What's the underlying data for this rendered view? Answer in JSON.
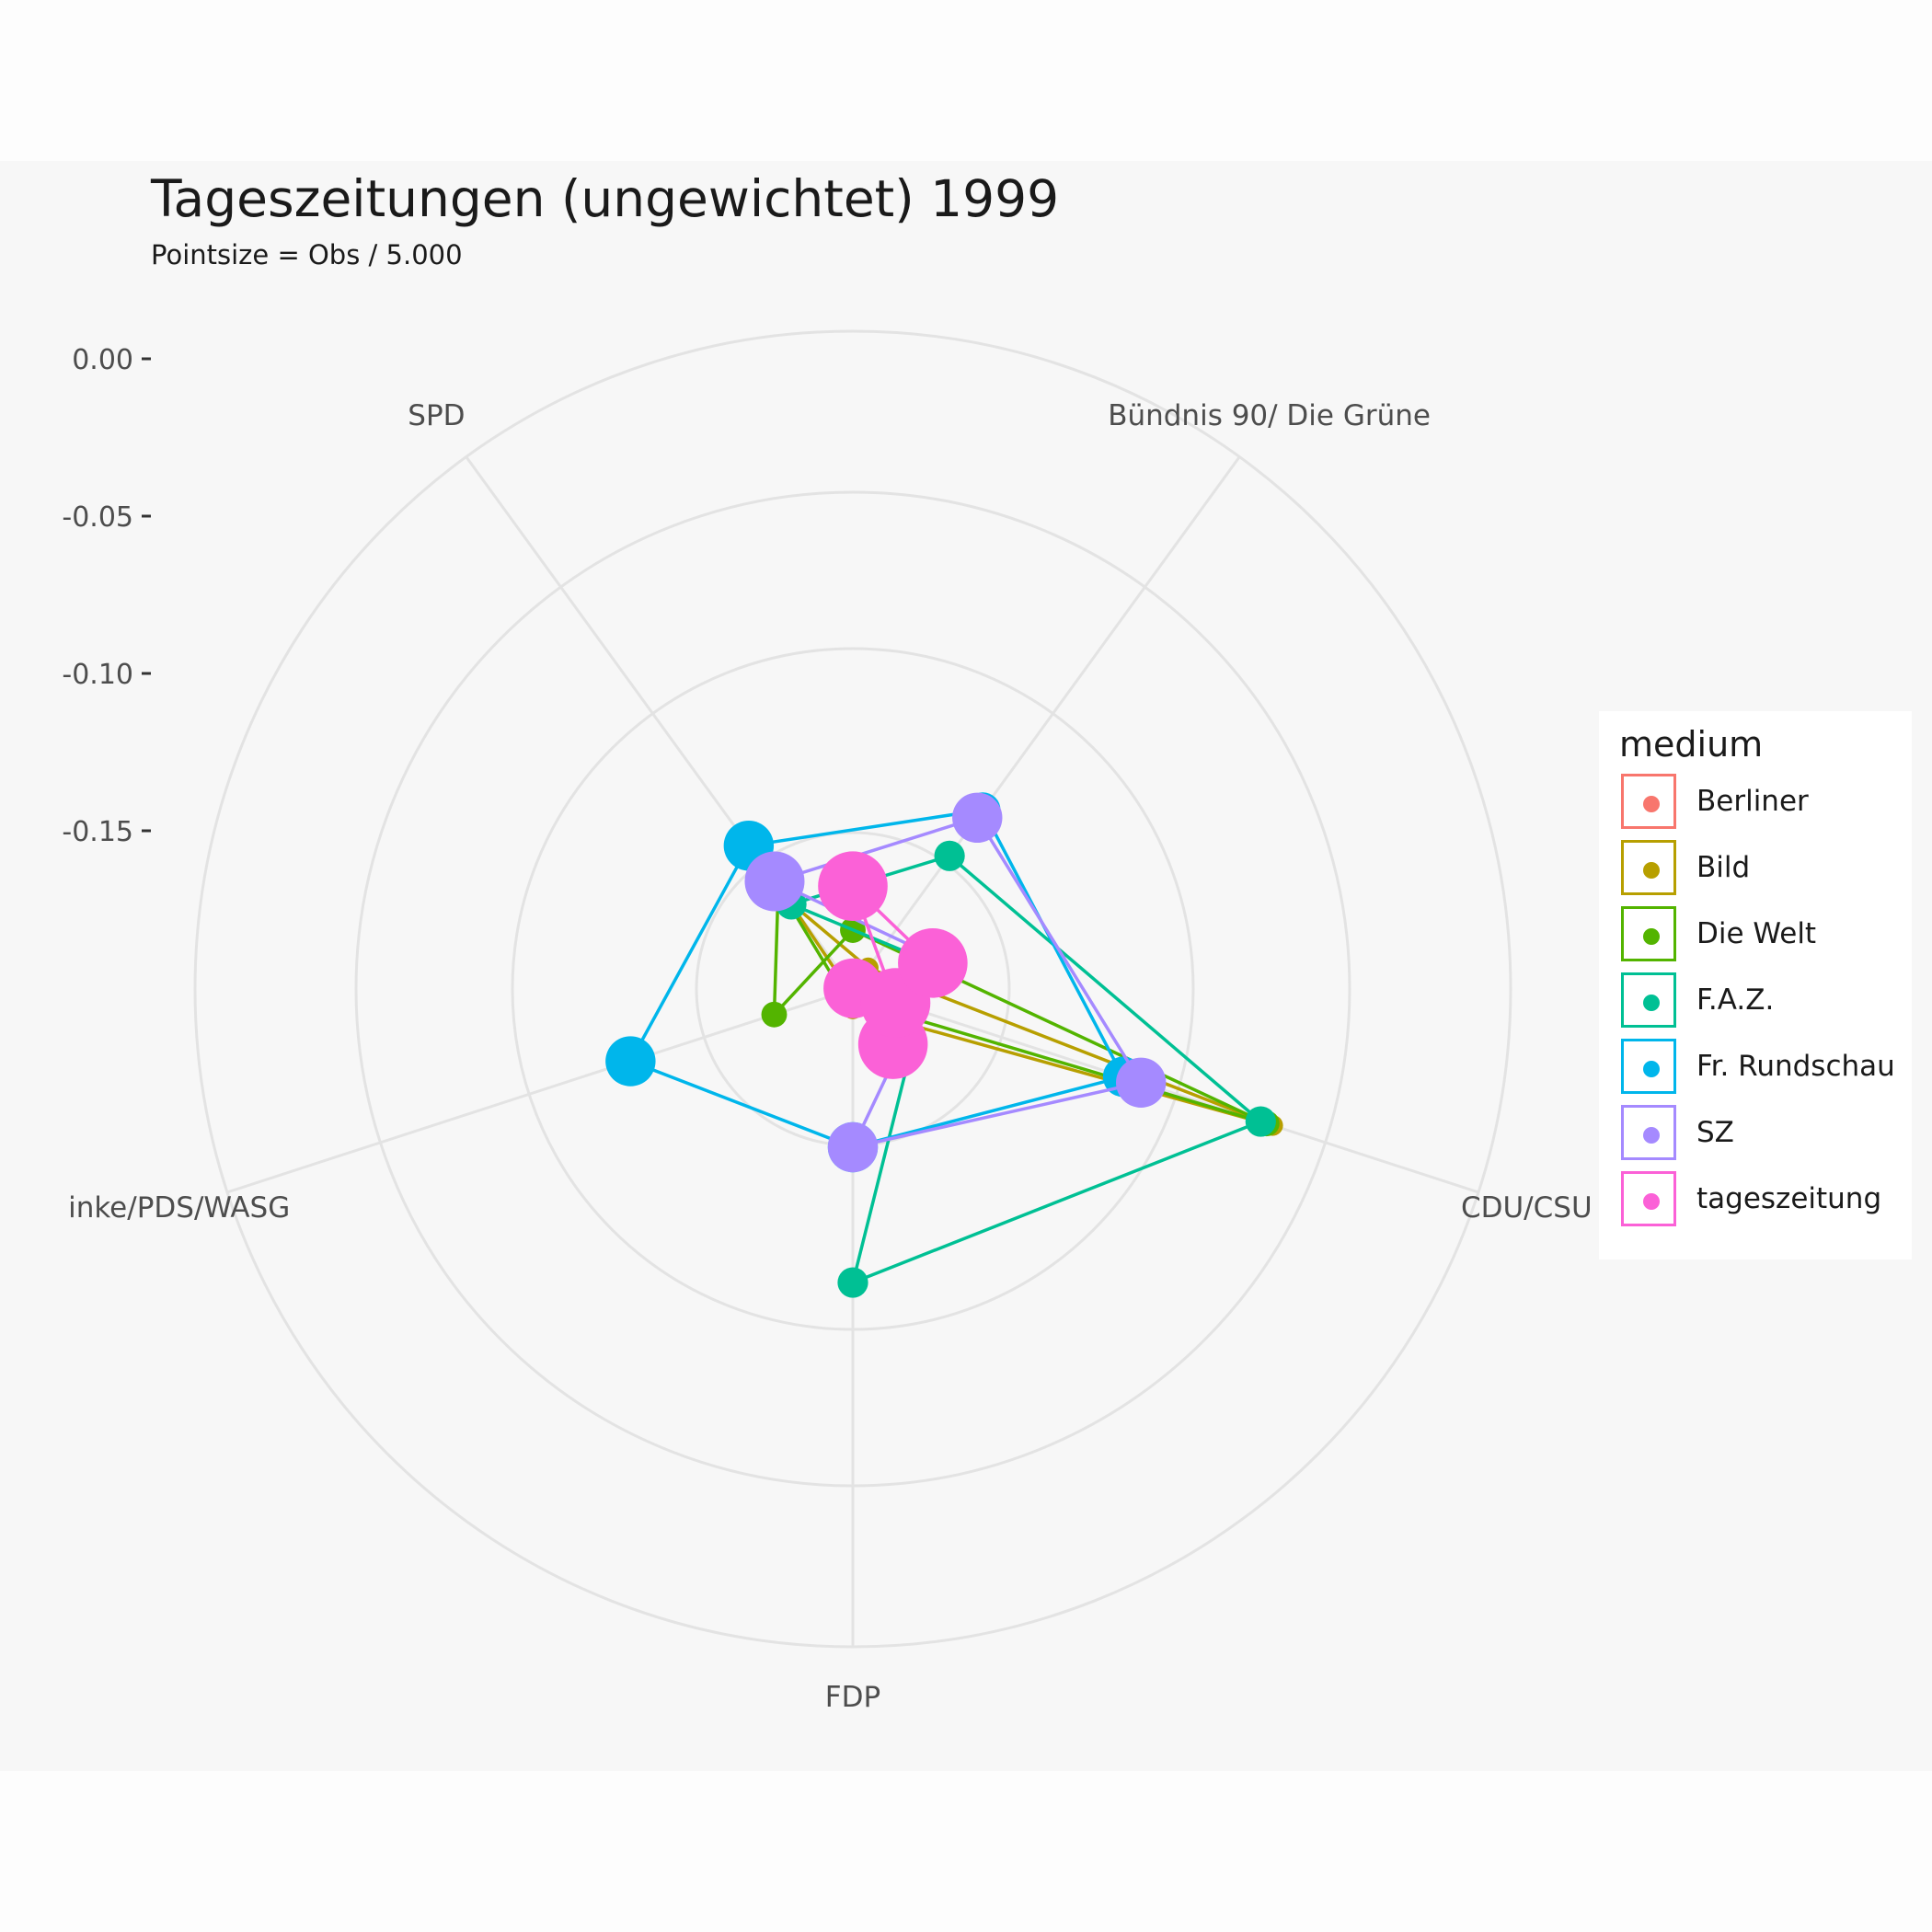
{
  "chart_data": {
    "type": "radar",
    "title": "Tageszeitungen (ungewichtet) 1999",
    "subtitle": "Pointsize = Obs / 5.000",
    "axes": [
      "SPD",
      "Bündnis 90/ Die Grüne",
      "CDU/CSU",
      "FDP",
      "inke/PDS/WASG"
    ],
    "r_ticks": [
      {
        "value": 0.0,
        "label": "0.00"
      },
      {
        "value": -0.05,
        "label": "-0.05"
      },
      {
        "value": -0.1,
        "label": "-0.10"
      },
      {
        "value": -0.15,
        "label": "-0.15"
      }
    ],
    "r_range": [
      -0.233,
      0.0
    ],
    "grid": true,
    "legend_title": "medium",
    "legend_position": "right",
    "series": [
      {
        "name": "Berliner",
        "color": "#F8766D",
        "values": [],
        "sizes": []
      },
      {
        "name": "Bild",
        "color": "#B79F00",
        "values": [
          -0.166,
          -0.192,
          -0.06,
          -0.194,
          -0.199
        ],
        "sizes": [
          1,
          1,
          1,
          1,
          1
        ]
      },
      {
        "name": "Die Welt",
        "color": "#53B400",
        "values": [
          -0.16,
          -0.204,
          -0.062,
          -0.219,
          -0.174
        ],
        "sizes": [
          1.5,
          1.5,
          1.5,
          1.5,
          1.5
        ]
      },
      {
        "name": "F.A.Z.",
        "color": "#00C094",
        "values": [
          -0.167,
          -0.148,
          -0.064,
          -0.107,
          -0.227
        ],
        "sizes": [
          2,
          2,
          2,
          2,
          2
        ]
      },
      {
        "name": "Fr. Rundschau",
        "color": "#00B6EB",
        "values": [
          -0.144,
          -0.13,
          -0.11,
          -0.15,
          -0.126
        ],
        "sizes": [
          4,
          2.5,
          3,
          4,
          4
        ]
      },
      {
        "name": "SZ",
        "color": "#A58AFF",
        "values": [
          -0.158,
          -0.133,
          -0.104,
          -0.15,
          -0.23
        ],
        "sizes": [
          5,
          4,
          4,
          4,
          4
        ]
      },
      {
        "name": "tageszeitung",
        "color": "#FB61D7",
        "values": [
          -0.222,
          -0.2,
          -0.186,
          -0.233,
          -0.227
        ],
        "sizes": [
          6,
          5,
          6,
          6,
          6
        ]
      }
    ]
  }
}
